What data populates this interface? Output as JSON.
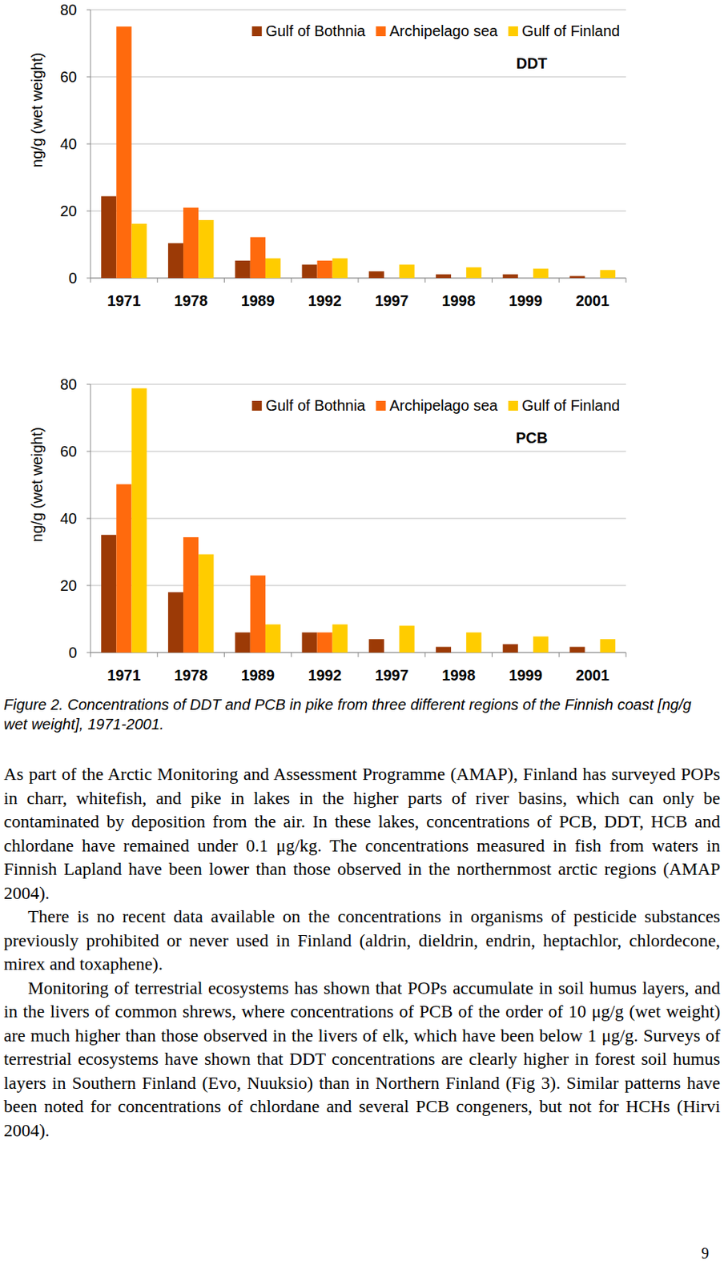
{
  "chart_data": [
    {
      "type": "bar",
      "title": "DDT",
      "y_label": "ng/g (wet weight)",
      "categories": [
        "1971",
        "1978",
        "1989",
        "1992",
        "1997",
        "1998",
        "1999",
        "2001"
      ],
      "series": [
        {
          "name": "Gulf of Bothnia",
          "color": "#9c3a06",
          "values": [
            24.4,
            10.4,
            5.2,
            4,
            2,
            1.1,
            1.1,
            0.6
          ]
        },
        {
          "name": "Archipelago sea",
          "color": "#ff6a0d",
          "values": [
            75,
            21,
            12.2,
            5.2,
            null,
            null,
            null,
            null
          ]
        },
        {
          "name": "Gulf of Finland",
          "color": "#ffcc00",
          "values": [
            16.2,
            17.3,
            5.9,
            5.9,
            4,
            3.2,
            2.8,
            2.4
          ]
        }
      ],
      "ylim": [
        0,
        80
      ],
      "yticks": [
        0,
        20,
        40,
        60,
        80
      ],
      "grid": true,
      "legend": "top-right"
    },
    {
      "type": "bar",
      "title": "PCB",
      "y_label": "ng/g (wet weight)",
      "categories": [
        "1971",
        "1978",
        "1989",
        "1992",
        "1997",
        "1998",
        "1999",
        "2001"
      ],
      "series": [
        {
          "name": "Gulf of Bothnia",
          "color": "#9c3a06",
          "values": [
            35.1,
            18,
            6,
            6,
            4,
            1.7,
            2.5,
            1.7
          ]
        },
        {
          "name": "Archipelago sea",
          "color": "#ff6a0d",
          "values": [
            50.2,
            34.4,
            23,
            6,
            null,
            null,
            null,
            null
          ]
        },
        {
          "name": "Gulf of Finland",
          "color": "#ffcc00",
          "values": [
            78.8,
            29.3,
            8.4,
            8.4,
            8,
            6,
            4.8,
            4
          ]
        }
      ],
      "ylim": [
        0,
        80
      ],
      "yticks": [
        0,
        20,
        40,
        60,
        80
      ],
      "grid": true,
      "legend": "top-right"
    }
  ],
  "caption": "Figure 2. Concentrations of DDT and PCB in pike from three different regions of the Finnish coast [ng/g wet weight], 1971-2001.",
  "paragraphs": [
    "As part of the Arctic Monitoring and Assessment Programme (AMAP), Finland has surveyed POPs in charr, whitefish, and pike in lakes in the higher parts of river basins, which can only be contaminated by deposition from the air. In these lakes, concentrations of PCB, DDT, HCB and chlordane have remained under 0.1 μg/kg. The concentrations measured in fish from waters in Finnish Lapland have been lower than those observed in the northernmost arctic regions (AMAP 2004).",
    "There is no recent data available on the concentrations in organisms of pesticide substances previously prohibited or never used in Finland (aldrin, dieldrin, endrin, heptachlor, chlordecone, mirex and toxaphene).",
    "Monitoring of terrestrial ecosystems has shown that POPs accumulate in soil humus layers, and in the livers of common shrews, where concentrations of PCB of the order of 10 μg/g (wet weight) are much higher than those observed in the livers of elk, which have been below 1 μg/g. Surveys of terrestrial ecosystems have shown that DDT concentrations are clearly higher in forest soil humus layers in Southern Finland (Evo, Nuuksio) than in Northern Finland (Fig 3). Similar patterns have been noted for concentrations of chlordane and several PCB congeners, but not for HCHs (Hirvi 2004)."
  ],
  "page_number": "9"
}
